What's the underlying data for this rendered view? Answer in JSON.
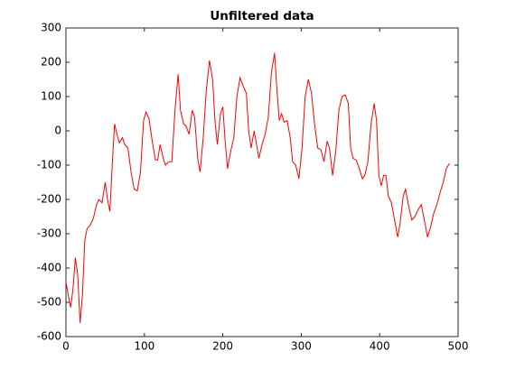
{
  "chart_data": {
    "type": "line",
    "title": "Unfiltered data",
    "x": [
      0,
      3,
      6,
      9,
      12,
      15,
      18,
      21,
      24,
      27,
      31,
      35,
      39,
      42,
      46,
      50,
      53,
      56,
      59,
      62,
      65,
      68,
      72,
      75,
      79,
      83,
      87,
      91,
      95,
      99,
      102,
      106,
      110,
      114,
      117,
      120,
      124,
      127,
      131,
      135,
      139,
      143,
      146,
      150,
      153,
      157,
      161,
      164,
      168,
      171,
      175,
      179,
      183,
      187,
      190,
      193,
      197,
      200,
      203,
      206,
      210,
      214,
      218,
      222,
      226,
      230,
      233,
      236,
      240,
      243,
      246,
      250,
      254,
      258,
      262,
      266,
      269,
      272,
      275,
      278,
      282,
      286,
      289,
      293,
      297,
      301,
      305,
      309,
      313,
      317,
      321,
      325,
      329,
      333,
      336,
      340,
      344,
      348,
      352,
      356,
      360,
      363,
      366,
      370,
      374,
      378,
      381,
      385,
      389,
      393,
      396,
      399,
      402,
      405,
      408,
      411,
      415,
      419,
      423,
      426,
      430,
      433,
      437,
      441,
      445,
      449,
      453,
      457,
      461,
      465,
      469,
      473,
      477,
      481,
      485,
      489
    ],
    "series": [
      {
        "color": "#ff0000",
        "values": [
          -440,
          -480,
          -515,
          -460,
          -370,
          -420,
          -560,
          -480,
          -320,
          -285,
          -275,
          -255,
          -215,
          -200,
          -210,
          -150,
          -200,
          -235,
          -100,
          20,
          -10,
          -35,
          -20,
          -40,
          -50,
          -120,
          -170,
          -175,
          -120,
          30,
          55,
          35,
          -30,
          -85,
          -85,
          -40,
          -80,
          -100,
          -90,
          -90,
          60,
          165,
          60,
          20,
          15,
          -10,
          60,
          40,
          -80,
          -120,
          -20,
          120,
          205,
          150,
          30,
          -40,
          50,
          70,
          -30,
          -110,
          -60,
          -20,
          100,
          155,
          130,
          110,
          0,
          -50,
          0,
          -40,
          -80,
          -40,
          -10,
          40,
          170,
          227,
          120,
          30,
          50,
          25,
          30,
          -20,
          -90,
          -100,
          -140,
          -50,
          100,
          150,
          110,
          20,
          -50,
          -55,
          -90,
          -30,
          -50,
          -130,
          -60,
          60,
          100,
          105,
          80,
          -50,
          -80,
          -85,
          -110,
          -140,
          -130,
          -90,
          20,
          80,
          30,
          -130,
          -160,
          -130,
          -130,
          -190,
          -210,
          -260,
          -310,
          -270,
          -190,
          -170,
          -220,
          -260,
          -250,
          -230,
          -215,
          -260,
          -310,
          -280,
          -240,
          -215,
          -180,
          -150,
          -110,
          -95
        ]
      }
    ],
    "xlim": [
      0,
      500
    ],
    "xticks": [
      0,
      100,
      200,
      300,
      400,
      500
    ],
    "ylim": [
      -600,
      300
    ],
    "yticks": [
      -600,
      -500,
      -400,
      -300,
      -200,
      -100,
      0,
      100,
      200,
      300
    ]
  }
}
